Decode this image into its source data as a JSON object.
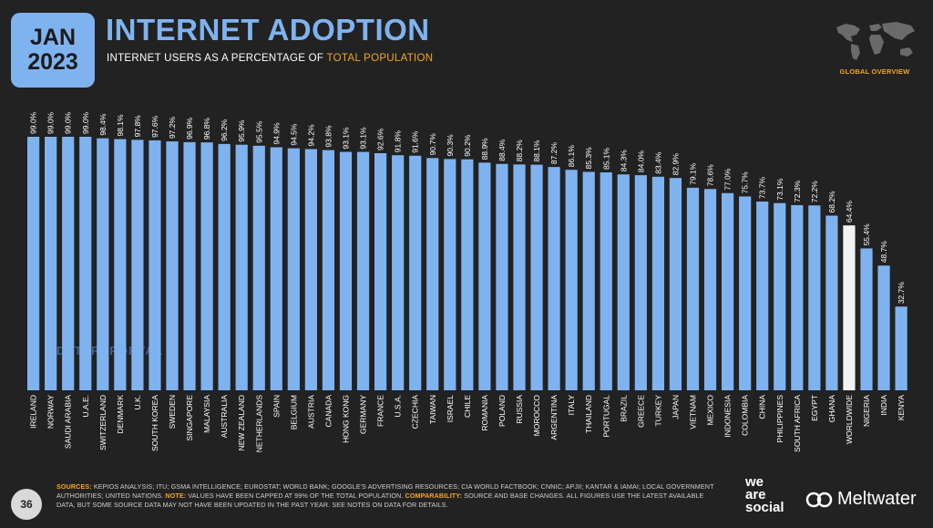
{
  "header": {
    "badge_month": "JAN",
    "badge_year": "2023",
    "title": "INTERNET ADOPTION",
    "subtitle_main": "INTERNET USERS AS A PERCENTAGE OF ",
    "subtitle_highlight": "TOTAL POPULATION",
    "global_overview": "GLOBAL OVERVIEW"
  },
  "colors": {
    "background": "#222222",
    "bar": "#7fb3f0",
    "highlight_bar": "#f2f2f2",
    "accent": "#f5a623"
  },
  "watermark": "DATAREPORTAL",
  "footer": {
    "page_number": "36",
    "sources_label": "SOURCES:",
    "sources_text": " KEPIOS ANALYSIS; ITU; GSMA INTELLIGENCE; EUROSTAT; WORLD BANK; GOOGLE'S ADVERTISING RESOURCES; CIA WORLD FACTBOOK; CNNIC; APJII; KANTAR & IAMAI; LOCAL GOVERNMENT AUTHORITIES; UNITED NATIONS. ",
    "note_label": "NOTE:",
    "note_text": " VALUES HAVE BEEN CAPPED AT 99% OF THE TOTAL POPULATION. ",
    "comparability_label": "COMPARABILITY:",
    "comparability_text": " SOURCE AND BASE CHANGES. ALL FIGURES USE THE LATEST AVAILABLE DATA, BUT SOME SOURCE DATA MAY NOT HAVE BEEN UPDATED IN THE PAST YEAR. SEE NOTES ON DATA FOR DETAILS.",
    "brand_1_line1": "we",
    "brand_1_line2": "are",
    "brand_1_line3": "social",
    "brand_2": "Meltwater"
  },
  "chart_data": {
    "type": "bar",
    "title": "INTERNET ADOPTION",
    "subtitle": "INTERNET USERS AS A PERCENTAGE OF TOTAL POPULATION",
    "ylim": [
      0,
      100
    ],
    "grid": false,
    "highlight_category": "WORLDWIDE",
    "categories": [
      "IRELAND",
      "NORWAY",
      "SAUDI ARABIA",
      "U.A.E.",
      "SWITZERLAND",
      "DENMARK",
      "U.K.",
      "SOUTH KOREA",
      "SWEDEN",
      "SINGAPORE",
      "MALAYSIA",
      "AUSTRALIA",
      "NEW ZEALAND",
      "NETHERLANDS",
      "SPAIN",
      "BELGIUM",
      "AUSTRIA",
      "CANADA",
      "HONG KONG",
      "GERMANY",
      "FRANCE",
      "U.S.A.",
      "CZECHIA",
      "TAIWAN",
      "ISRAEL",
      "CHILE",
      "ROMANIA",
      "POLAND",
      "RUSSIA",
      "MOROCCO",
      "ARGENTINA",
      "ITALY",
      "THAILAND",
      "PORTUGAL",
      "BRAZIL",
      "GREECE",
      "TURKEY",
      "JAPAN",
      "VIETNAM",
      "MEXICO",
      "INDONESIA",
      "COLOMBIA",
      "CHINA",
      "PHILIPPINES",
      "SOUTH AFRICA",
      "EGYPT",
      "GHANA",
      "WORLDWIDE",
      "NIGERIA",
      "INDIA",
      "KENYA"
    ],
    "values": [
      99.0,
      99.0,
      99.0,
      99.0,
      98.4,
      98.1,
      97.8,
      97.6,
      97.2,
      96.9,
      96.8,
      96.2,
      95.9,
      95.5,
      94.9,
      94.5,
      94.2,
      93.8,
      93.1,
      93.1,
      92.6,
      91.8,
      91.6,
      90.7,
      90.3,
      90.2,
      88.9,
      88.4,
      88.2,
      88.1,
      87.2,
      86.1,
      85.3,
      85.1,
      84.3,
      84.0,
      83.4,
      82.9,
      79.1,
      78.6,
      77.0,
      75.7,
      73.7,
      73.1,
      72.3,
      72.2,
      68.2,
      64.4,
      55.4,
      48.7,
      32.7
    ],
    "labels": [
      "99.0%",
      "99.0%",
      "99.0%",
      "99.0%",
      "98.4%",
      "98.1%",
      "97.8%",
      "97.6%",
      "97.2%",
      "96.9%",
      "96.8%",
      "96.2%",
      "95.9%",
      "95.5%",
      "94.9%",
      "94.5%",
      "94.2%",
      "93.8%",
      "93.1%",
      "93.1%",
      "92.6%",
      "91.8%",
      "91.6%",
      "90.7%",
      "90.3%",
      "90.2%",
      "88.9%",
      "88.4%",
      "88.2%",
      "88.1%",
      "87.2%",
      "86.1%",
      "85.3%",
      "85.1%",
      "84.3%",
      "84.0%",
      "83.4%",
      "82.9%",
      "79.1%",
      "78.6%",
      "77.0%",
      "75.7%",
      "73.7%",
      "73.1%",
      "72.3%",
      "72.2%",
      "68.2%",
      "64.4%",
      "55.4%",
      "48.7%",
      "32.7%"
    ]
  }
}
